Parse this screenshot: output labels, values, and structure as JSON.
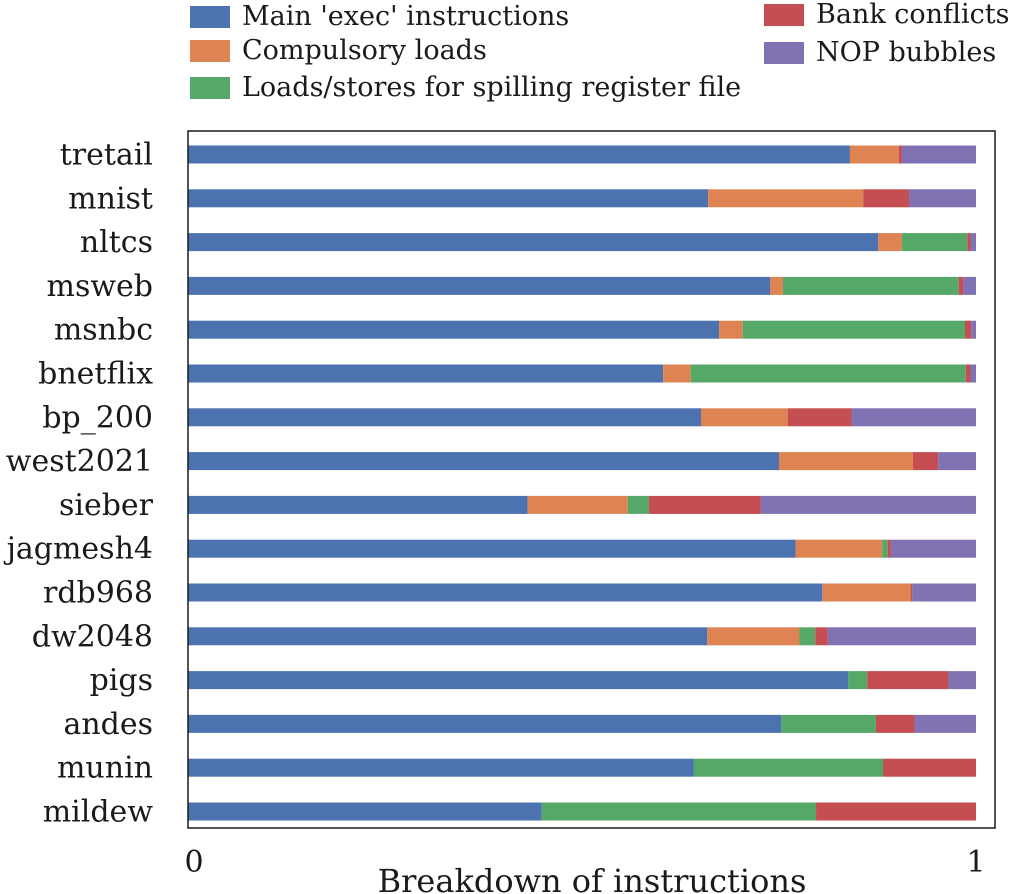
{
  "chart_data": {
    "type": "bar",
    "orientation": "horizontal",
    "stacked": true,
    "xlabel": "Breakdown of instructions",
    "ylabel": "",
    "xlim": [
      0,
      1
    ],
    "x_ticks": [
      "0",
      "1"
    ],
    "grid": false,
    "legend_position": "top",
    "categories": [
      "tretail",
      "mnist",
      "nltcs",
      "msweb",
      "msnbc",
      "bnetflix",
      "bp_200",
      "west2021",
      "sieber",
      "jagmesh4",
      "rdb968",
      "dw2048",
      "pigs",
      "andes",
      "munin",
      "mildew"
    ],
    "series": [
      {
        "name": "Main 'exec' instructions",
        "color": "#4c72b0",
        "values": [
          0.84,
          0.66,
          0.876,
          0.739,
          0.674,
          0.603,
          0.651,
          0.75,
          0.431,
          0.771,
          0.805,
          0.659,
          0.838,
          0.753,
          0.642,
          0.449
        ]
      },
      {
        "name": "Compulsory loads",
        "color": "#dd8452",
        "values": [
          0.062,
          0.197,
          0.03,
          0.016,
          0.03,
          0.035,
          0.11,
          0.17,
          0.127,
          0.11,
          0.112,
          0.117,
          0.0,
          0.0,
          0.0,
          0.0
        ]
      },
      {
        "name": "Loads/stores for spilling register file",
        "color": "#55a868",
        "values": [
          0.0,
          0.0,
          0.083,
          0.223,
          0.282,
          0.349,
          0.0,
          0.0,
          0.027,
          0.007,
          0.0,
          0.02,
          0.024,
          0.12,
          0.24,
          0.348
        ]
      },
      {
        "name": "Bank conflicts",
        "color": "#c44e52",
        "values": [
          0.004,
          0.058,
          0.004,
          0.006,
          0.008,
          0.006,
          0.081,
          0.032,
          0.142,
          0.004,
          0.002,
          0.016,
          0.103,
          0.049,
          0.118,
          0.203
        ]
      },
      {
        "name": "NOP bubbles",
        "color": "#8172b3",
        "values": [
          0.094,
          0.085,
          0.007,
          0.016,
          0.006,
          0.007,
          0.158,
          0.048,
          0.273,
          0.108,
          0.081,
          0.188,
          0.035,
          0.078,
          0.0,
          0.0
        ]
      }
    ]
  }
}
